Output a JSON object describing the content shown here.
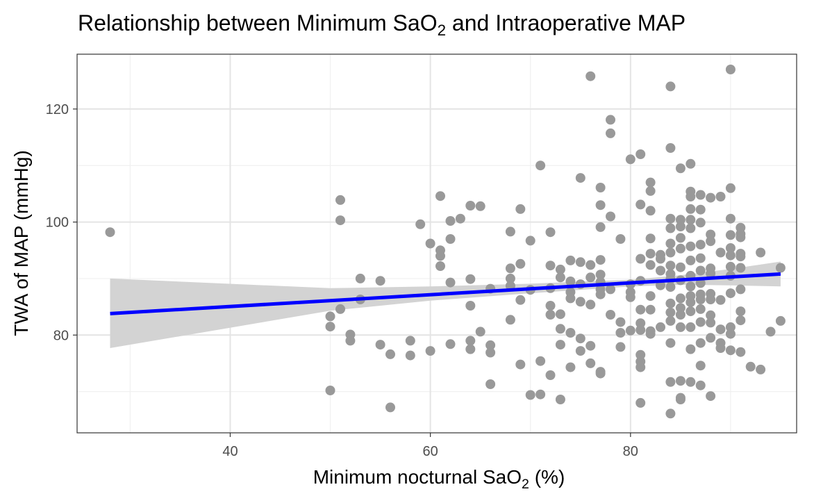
{
  "chart_data": {
    "type": "scatter",
    "title": {
      "pre": "Relationship between Minimum SaO",
      "sub": "2",
      "post": " and Intraoperative MAP"
    },
    "xlabel": {
      "pre": "Minimum nocturnal SaO",
      "sub": "2",
      "post": " (%)"
    },
    "ylabel": "TWA of MAP (mmHg)",
    "xlim": [
      24.7,
      96.6
    ],
    "ylim": [
      62.7,
      129.7
    ],
    "x_ticks": [
      40,
      60,
      80
    ],
    "x_tick_labels": [
      "40",
      "60",
      "80"
    ],
    "x_minor_ticks": [
      30,
      50,
      70,
      90
    ],
    "y_ticks": [
      80,
      100,
      120
    ],
    "y_tick_labels": [
      "80",
      "100",
      "120"
    ],
    "y_minor_ticks": [
      70,
      90,
      110
    ],
    "grid": true,
    "point_color": "#999999",
    "line_color": "#0000ff",
    "ribbon_color": "#d3d3d3",
    "fit_line": {
      "x": [
        28,
        95
      ],
      "y": [
        83.8,
        90.8
      ]
    },
    "ci_band": {
      "x": [
        28,
        50,
        60,
        70,
        80,
        85,
        90,
        95
      ],
      "lower": [
        77.7,
        84.3,
        86.1,
        87.4,
        88.6,
        88.9,
        88.8,
        88.6
      ],
      "upper": [
        90.0,
        88.3,
        88.6,
        89.1,
        89.8,
        90.6,
        91.7,
        93.0
      ]
    },
    "points": [
      [
        28,
        98.2
      ],
      [
        50,
        83.3
      ],
      [
        50,
        81.5
      ],
      [
        50,
        70.2
      ],
      [
        51,
        103.9
      ],
      [
        51,
        100.3
      ],
      [
        51,
        84.6
      ],
      [
        52,
        80.1
      ],
      [
        52,
        79.0
      ],
      [
        53,
        90.0
      ],
      [
        53,
        86.3
      ],
      [
        55,
        89.6
      ],
      [
        55,
        78.3
      ],
      [
        56,
        76.6
      ],
      [
        56,
        67.2
      ],
      [
        58,
        79.0
      ],
      [
        58,
        76.4
      ],
      [
        59,
        99.6
      ],
      [
        60,
        96.2
      ],
      [
        60,
        77.2
      ],
      [
        61,
        104.6
      ],
      [
        61,
        95.0
      ],
      [
        61,
        94.0
      ],
      [
        61,
        92.2
      ],
      [
        62,
        100.2
      ],
      [
        62,
        97.0
      ],
      [
        62,
        89.3
      ],
      [
        62,
        78.4
      ],
      [
        63,
        100.6
      ],
      [
        64,
        102.9
      ],
      [
        64,
        89.9
      ],
      [
        64,
        85.2
      ],
      [
        64,
        79.0
      ],
      [
        64,
        77.5
      ],
      [
        65,
        102.8
      ],
      [
        65,
        80.6
      ],
      [
        66,
        88.2
      ],
      [
        66,
        78.2
      ],
      [
        66,
        76.9
      ],
      [
        66,
        71.3
      ],
      [
        68,
        98.3
      ],
      [
        68,
        91.8
      ],
      [
        68,
        90.0
      ],
      [
        68,
        88.7
      ],
      [
        68,
        82.7
      ],
      [
        69,
        102.3
      ],
      [
        69,
        92.6
      ],
      [
        69,
        86.2
      ],
      [
        69,
        74.8
      ],
      [
        70,
        96.7
      ],
      [
        70,
        88.0
      ],
      [
        70,
        69.4
      ],
      [
        71,
        110.0
      ],
      [
        71,
        75.4
      ],
      [
        71,
        69.5
      ],
      [
        72,
        98.2
      ],
      [
        72,
        92.3
      ],
      [
        72,
        88.3
      ],
      [
        72,
        85.2
      ],
      [
        72,
        83.6
      ],
      [
        72,
        72.9
      ],
      [
        73,
        91.6
      ],
      [
        73,
        90.2
      ],
      [
        73,
        83.7
      ],
      [
        73,
        81.1
      ],
      [
        73,
        78.3
      ],
      [
        73,
        68.6
      ],
      [
        74,
        93.2
      ],
      [
        74,
        89.5
      ],
      [
        74,
        87.6
      ],
      [
        74,
        86.5
      ],
      [
        74,
        80.4
      ],
      [
        74,
        74.3
      ],
      [
        75,
        107.8
      ],
      [
        75,
        92.9
      ],
      [
        75,
        89.0
      ],
      [
        75,
        85.9
      ],
      [
        75,
        79.4
      ],
      [
        75,
        77.2
      ],
      [
        76,
        125.8
      ],
      [
        76,
        92.4
      ],
      [
        76,
        90.2
      ],
      [
        76,
        85.4
      ],
      [
        76,
        78.1
      ],
      [
        76,
        75.0
      ],
      [
        77,
        106.1
      ],
      [
        77,
        103.0
      ],
      [
        77,
        99.1
      ],
      [
        77,
        93.3
      ],
      [
        77,
        90.7
      ],
      [
        77,
        89.4
      ],
      [
        77,
        88.1
      ],
      [
        77,
        87.2
      ],
      [
        77,
        73.5
      ],
      [
        77,
        73.2
      ],
      [
        78,
        118.1
      ],
      [
        78,
        115.7
      ],
      [
        78,
        101.0
      ],
      [
        78,
        88.1
      ],
      [
        78,
        83.6
      ],
      [
        79,
        97.0
      ],
      [
        79,
        82.3
      ],
      [
        79,
        80.4
      ],
      [
        79,
        77.9
      ],
      [
        80,
        111.1
      ],
      [
        80,
        89.0
      ],
      [
        80,
        87.6
      ],
      [
        80,
        86.7
      ],
      [
        80,
        80.8
      ],
      [
        81,
        112.0
      ],
      [
        81,
        103.1
      ],
      [
        81,
        93.5
      ],
      [
        81,
        89.6
      ],
      [
        81,
        84.5
      ],
      [
        81,
        82.1
      ],
      [
        81,
        80.9
      ],
      [
        81,
        76.5
      ],
      [
        81,
        75.3
      ],
      [
        81,
        74.3
      ],
      [
        81,
        68.0
      ],
      [
        82,
        107.0
      ],
      [
        82,
        105.5
      ],
      [
        82,
        102.0
      ],
      [
        82,
        97.1
      ],
      [
        82,
        94.4
      ],
      [
        82,
        92.4
      ],
      [
        82,
        86.9
      ],
      [
        82,
        84.5
      ],
      [
        82,
        80.7
      ],
      [
        82,
        80.2
      ],
      [
        83,
        94.2
      ],
      [
        83,
        93.5
      ],
      [
        83,
        91.4
      ],
      [
        83,
        88.8
      ],
      [
        83,
        81.4
      ],
      [
        84,
        124.0
      ],
      [
        84,
        113.1
      ],
      [
        84,
        100.6
      ],
      [
        84,
        98.9
      ],
      [
        84,
        96.2
      ],
      [
        84,
        94.6
      ],
      [
        84,
        92.3
      ],
      [
        84,
        90.8
      ],
      [
        84,
        89.9
      ],
      [
        84,
        88.5
      ],
      [
        84,
        85.6
      ],
      [
        84,
        84.0
      ],
      [
        84,
        82.5
      ],
      [
        84,
        78.6
      ],
      [
        84,
        71.7
      ],
      [
        84,
        66.1
      ],
      [
        85,
        109.5
      ],
      [
        85,
        100.4
      ],
      [
        85,
        99.2
      ],
      [
        85,
        97.2
      ],
      [
        85,
        95.3
      ],
      [
        85,
        92.0
      ],
      [
        85,
        89.7
      ],
      [
        85,
        86.5
      ],
      [
        85,
        84.8
      ],
      [
        85,
        83.6
      ],
      [
        85,
        81.4
      ],
      [
        85,
        71.9
      ],
      [
        85,
        68.9
      ],
      [
        85,
        68.6
      ],
      [
        86,
        110.3
      ],
      [
        86,
        105.4
      ],
      [
        86,
        104.5
      ],
      [
        86,
        102.3
      ],
      [
        86,
        100.4
      ],
      [
        86,
        98.9
      ],
      [
        86,
        95.7
      ],
      [
        86,
        93.2
      ],
      [
        86,
        90.5
      ],
      [
        86,
        88.6
      ],
      [
        86,
        86.9
      ],
      [
        86,
        85.8
      ],
      [
        86,
        84.2
      ],
      [
        86,
        81.4
      ],
      [
        86,
        77.5
      ],
      [
        86,
        71.7
      ],
      [
        87,
        104.8
      ],
      [
        87,
        102.2
      ],
      [
        87,
        99.9
      ],
      [
        87,
        96.0
      ],
      [
        87,
        93.6
      ],
      [
        87,
        91.4
      ],
      [
        87,
        89.2
      ],
      [
        87,
        87.2
      ],
      [
        87,
        86.3
      ],
      [
        87,
        84.6
      ],
      [
        87,
        82.3
      ],
      [
        87,
        78.6
      ],
      [
        87,
        74.6
      ],
      [
        87,
        71.1
      ],
      [
        88,
        104.3
      ],
      [
        88,
        97.8
      ],
      [
        88,
        96.6
      ],
      [
        88,
        91.8
      ],
      [
        88,
        90.9
      ],
      [
        88,
        87.3
      ],
      [
        88,
        86.3
      ],
      [
        88,
        83.5
      ],
      [
        88,
        82.2
      ],
      [
        88,
        79.5
      ],
      [
        88,
        69.2
      ],
      [
        89,
        104.5
      ],
      [
        89,
        94.6
      ],
      [
        89,
        86.2
      ],
      [
        89,
        81.0
      ],
      [
        89,
        78.6
      ],
      [
        89,
        77.7
      ],
      [
        90,
        127.0
      ],
      [
        90,
        106.0
      ],
      [
        90,
        100.6
      ],
      [
        90,
        97.7
      ],
      [
        90,
        95.4
      ],
      [
        90,
        94.1
      ],
      [
        90,
        92.1
      ],
      [
        90,
        90.5
      ],
      [
        90,
        87.4
      ],
      [
        90,
        81.4
      ],
      [
        90,
        80.2
      ],
      [
        90,
        77.3
      ],
      [
        91,
        99.0
      ],
      [
        91,
        97.9
      ],
      [
        91,
        97.3
      ],
      [
        91,
        94.4
      ],
      [
        91,
        93.9
      ],
      [
        91,
        91.9
      ],
      [
        91,
        88.1
      ],
      [
        91,
        84.2
      ],
      [
        91,
        82.6
      ],
      [
        91,
        77.0
      ],
      [
        92,
        74.4
      ],
      [
        93,
        94.6
      ],
      [
        93,
        73.9
      ],
      [
        94,
        80.6
      ],
      [
        95,
        91.9
      ],
      [
        95,
        82.5
      ]
    ]
  }
}
